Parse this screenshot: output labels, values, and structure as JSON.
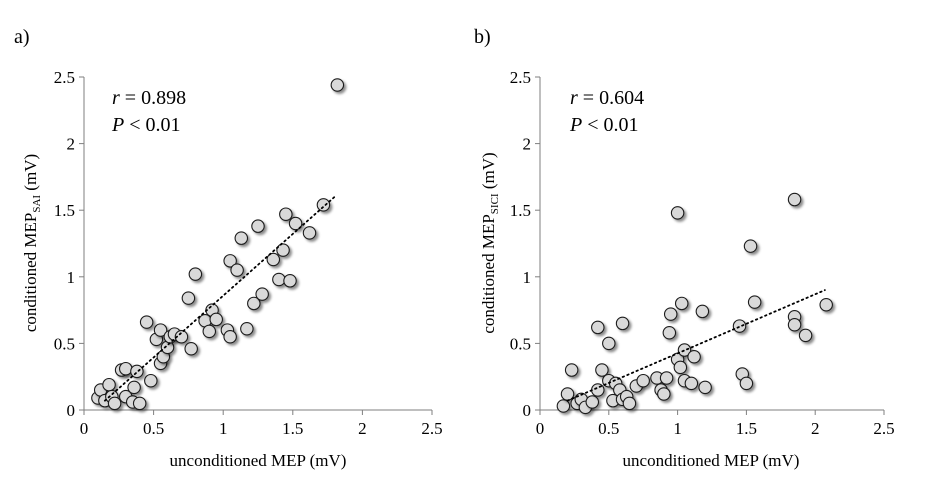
{
  "chart_data": [
    {
      "type": "scatter",
      "panel_label": "a)",
      "xlabel": "unconditioned MEP (mV)",
      "ylabel_main": "conditioned MEP",
      "ylabel_sub": "SAI",
      "ylabel_unit": " (mV)",
      "stat_r_symbol": "r",
      "stat_r_value": " = 0.898",
      "stat_p_symbol": "P",
      "stat_p_value": " < 0.01",
      "xlim": [
        0,
        2.5
      ],
      "ylim": [
        0,
        2.5
      ],
      "xticks": [
        "0",
        "0.5",
        "1",
        "1.5",
        "2",
        "2.5"
      ],
      "yticks": [
        "0",
        "0.5",
        "1",
        "1.5",
        "2",
        "2.5"
      ],
      "trendline": {
        "x": [
          0.15,
          1.8
        ],
        "y": [
          0.07,
          1.6
        ],
        "style": "dotted"
      },
      "points": [
        [
          0.1,
          0.09
        ],
        [
          0.12,
          0.15
        ],
        [
          0.15,
          0.07
        ],
        [
          0.18,
          0.19
        ],
        [
          0.2,
          0.1
        ],
        [
          0.22,
          0.05
        ],
        [
          0.27,
          0.3
        ],
        [
          0.3,
          0.31
        ],
        [
          0.3,
          0.1
        ],
        [
          0.35,
          0.06
        ],
        [
          0.36,
          0.17
        ],
        [
          0.38,
          0.29
        ],
        [
          0.4,
          0.05
        ],
        [
          0.45,
          0.66
        ],
        [
          0.48,
          0.22
        ],
        [
          0.52,
          0.53
        ],
        [
          0.55,
          0.6
        ],
        [
          0.55,
          0.35
        ],
        [
          0.57,
          0.4
        ],
        [
          0.6,
          0.47
        ],
        [
          0.62,
          0.55
        ],
        [
          0.65,
          0.57
        ],
        [
          0.7,
          0.55
        ],
        [
          0.75,
          0.84
        ],
        [
          0.77,
          0.46
        ],
        [
          0.8,
          1.02
        ],
        [
          0.87,
          0.67
        ],
        [
          0.9,
          0.59
        ],
        [
          0.92,
          0.75
        ],
        [
          0.95,
          0.68
        ],
        [
          1.03,
          0.6
        ],
        [
          1.05,
          0.55
        ],
        [
          1.05,
          1.12
        ],
        [
          1.1,
          1.05
        ],
        [
          1.13,
          1.29
        ],
        [
          1.17,
          0.61
        ],
        [
          1.22,
          0.8
        ],
        [
          1.25,
          1.38
        ],
        [
          1.28,
          0.87
        ],
        [
          1.36,
          1.13
        ],
        [
          1.4,
          0.98
        ],
        [
          1.43,
          1.2
        ],
        [
          1.45,
          1.47
        ],
        [
          1.48,
          0.97
        ],
        [
          1.52,
          1.4
        ],
        [
          1.62,
          1.33
        ],
        [
          1.72,
          1.54
        ],
        [
          1.82,
          2.44
        ]
      ]
    },
    {
      "type": "scatter",
      "panel_label": "b)",
      "xlabel": "unconditioned MEP (mV)",
      "ylabel_main": "conditioned MEP",
      "ylabel_sub": "SICI",
      "ylabel_unit": " (mV)",
      "stat_r_symbol": "r",
      "stat_r_value": " = 0.604",
      "stat_p_symbol": "P",
      "stat_p_value": " < 0.01",
      "xlim": [
        0,
        2.5
      ],
      "ylim": [
        0,
        2.5
      ],
      "xticks": [
        "0",
        "0.5",
        "1",
        "1.5",
        "2",
        "2.5"
      ],
      "yticks": [
        "0",
        "0.5",
        "1",
        "1.5",
        "2",
        "2.5"
      ],
      "trendline": {
        "x": [
          0.2,
          2.07
        ],
        "y": [
          0.07,
          0.9
        ],
        "style": "dotted"
      },
      "points": [
        [
          0.17,
          0.03
        ],
        [
          0.2,
          0.12
        ],
        [
          0.23,
          0.3
        ],
        [
          0.27,
          0.05
        ],
        [
          0.3,
          0.08
        ],
        [
          0.33,
          0.02
        ],
        [
          0.38,
          0.06
        ],
        [
          0.42,
          0.62
        ],
        [
          0.42,
          0.15
        ],
        [
          0.45,
          0.3
        ],
        [
          0.5,
          0.22
        ],
        [
          0.5,
          0.5
        ],
        [
          0.53,
          0.07
        ],
        [
          0.55,
          0.2
        ],
        [
          0.58,
          0.15
        ],
        [
          0.6,
          0.65
        ],
        [
          0.6,
          0.08
        ],
        [
          0.63,
          0.1
        ],
        [
          0.65,
          0.05
        ],
        [
          0.7,
          0.18
        ],
        [
          0.75,
          0.22
        ],
        [
          0.85,
          0.24
        ],
        [
          0.88,
          0.15
        ],
        [
          0.9,
          0.12
        ],
        [
          0.92,
          0.24
        ],
        [
          0.94,
          0.58
        ],
        [
          0.95,
          0.72
        ],
        [
          1.0,
          1.48
        ],
        [
          1.0,
          0.38
        ],
        [
          1.02,
          0.32
        ],
        [
          1.03,
          0.8
        ],
        [
          1.05,
          0.45
        ],
        [
          1.05,
          0.22
        ],
        [
          1.1,
          0.2
        ],
        [
          1.12,
          0.4
        ],
        [
          1.18,
          0.74
        ],
        [
          1.2,
          0.17
        ],
        [
          1.45,
          0.63
        ],
        [
          1.47,
          0.27
        ],
        [
          1.5,
          0.2
        ],
        [
          1.53,
          1.23
        ],
        [
          1.56,
          0.81
        ],
        [
          1.85,
          1.58
        ],
        [
          1.85,
          0.7
        ],
        [
          1.85,
          0.64
        ],
        [
          1.93,
          0.56
        ],
        [
          2.08,
          0.79
        ]
      ]
    }
  ]
}
